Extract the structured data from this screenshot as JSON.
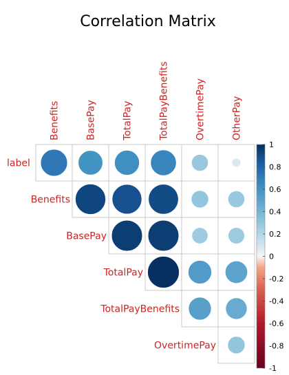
{
  "chart_data": {
    "type": "heatmap",
    "title": "Correlation Matrix",
    "style": "upper-triangle correlation plot, circle glyphs",
    "columns": [
      "Benefits",
      "BasePay",
      "TotalPay",
      "TotalPayBenefits",
      "OvertimePay",
      "OtherPay"
    ],
    "rows": [
      "label",
      "Benefits",
      "BasePay",
      "TotalPay",
      "TotalPayBenefits",
      "OvertimePay"
    ],
    "values": [
      [
        0.72,
        0.6,
        0.62,
        0.66,
        0.28,
        0.08
      ],
      [
        null,
        0.92,
        0.88,
        0.9,
        0.3,
        0.28
      ],
      [
        null,
        null,
        0.95,
        0.95,
        0.26,
        0.27
      ],
      [
        null,
        null,
        null,
        1.0,
        0.55,
        0.5
      ],
      [
        null,
        null,
        null,
        null,
        0.52,
        0.46
      ],
      [
        null,
        null,
        null,
        null,
        null,
        0.3
      ]
    ],
    "colorbar": {
      "min": -1,
      "max": 1,
      "ticks": [
        "1",
        "0.8",
        "0.6",
        "0.4",
        "0.2",
        "0",
        "-0.2",
        "-0.4",
        "-0.6",
        "-0.8",
        "-1"
      ],
      "position": "right"
    },
    "label_color": "#cc2222",
    "grid": true
  }
}
